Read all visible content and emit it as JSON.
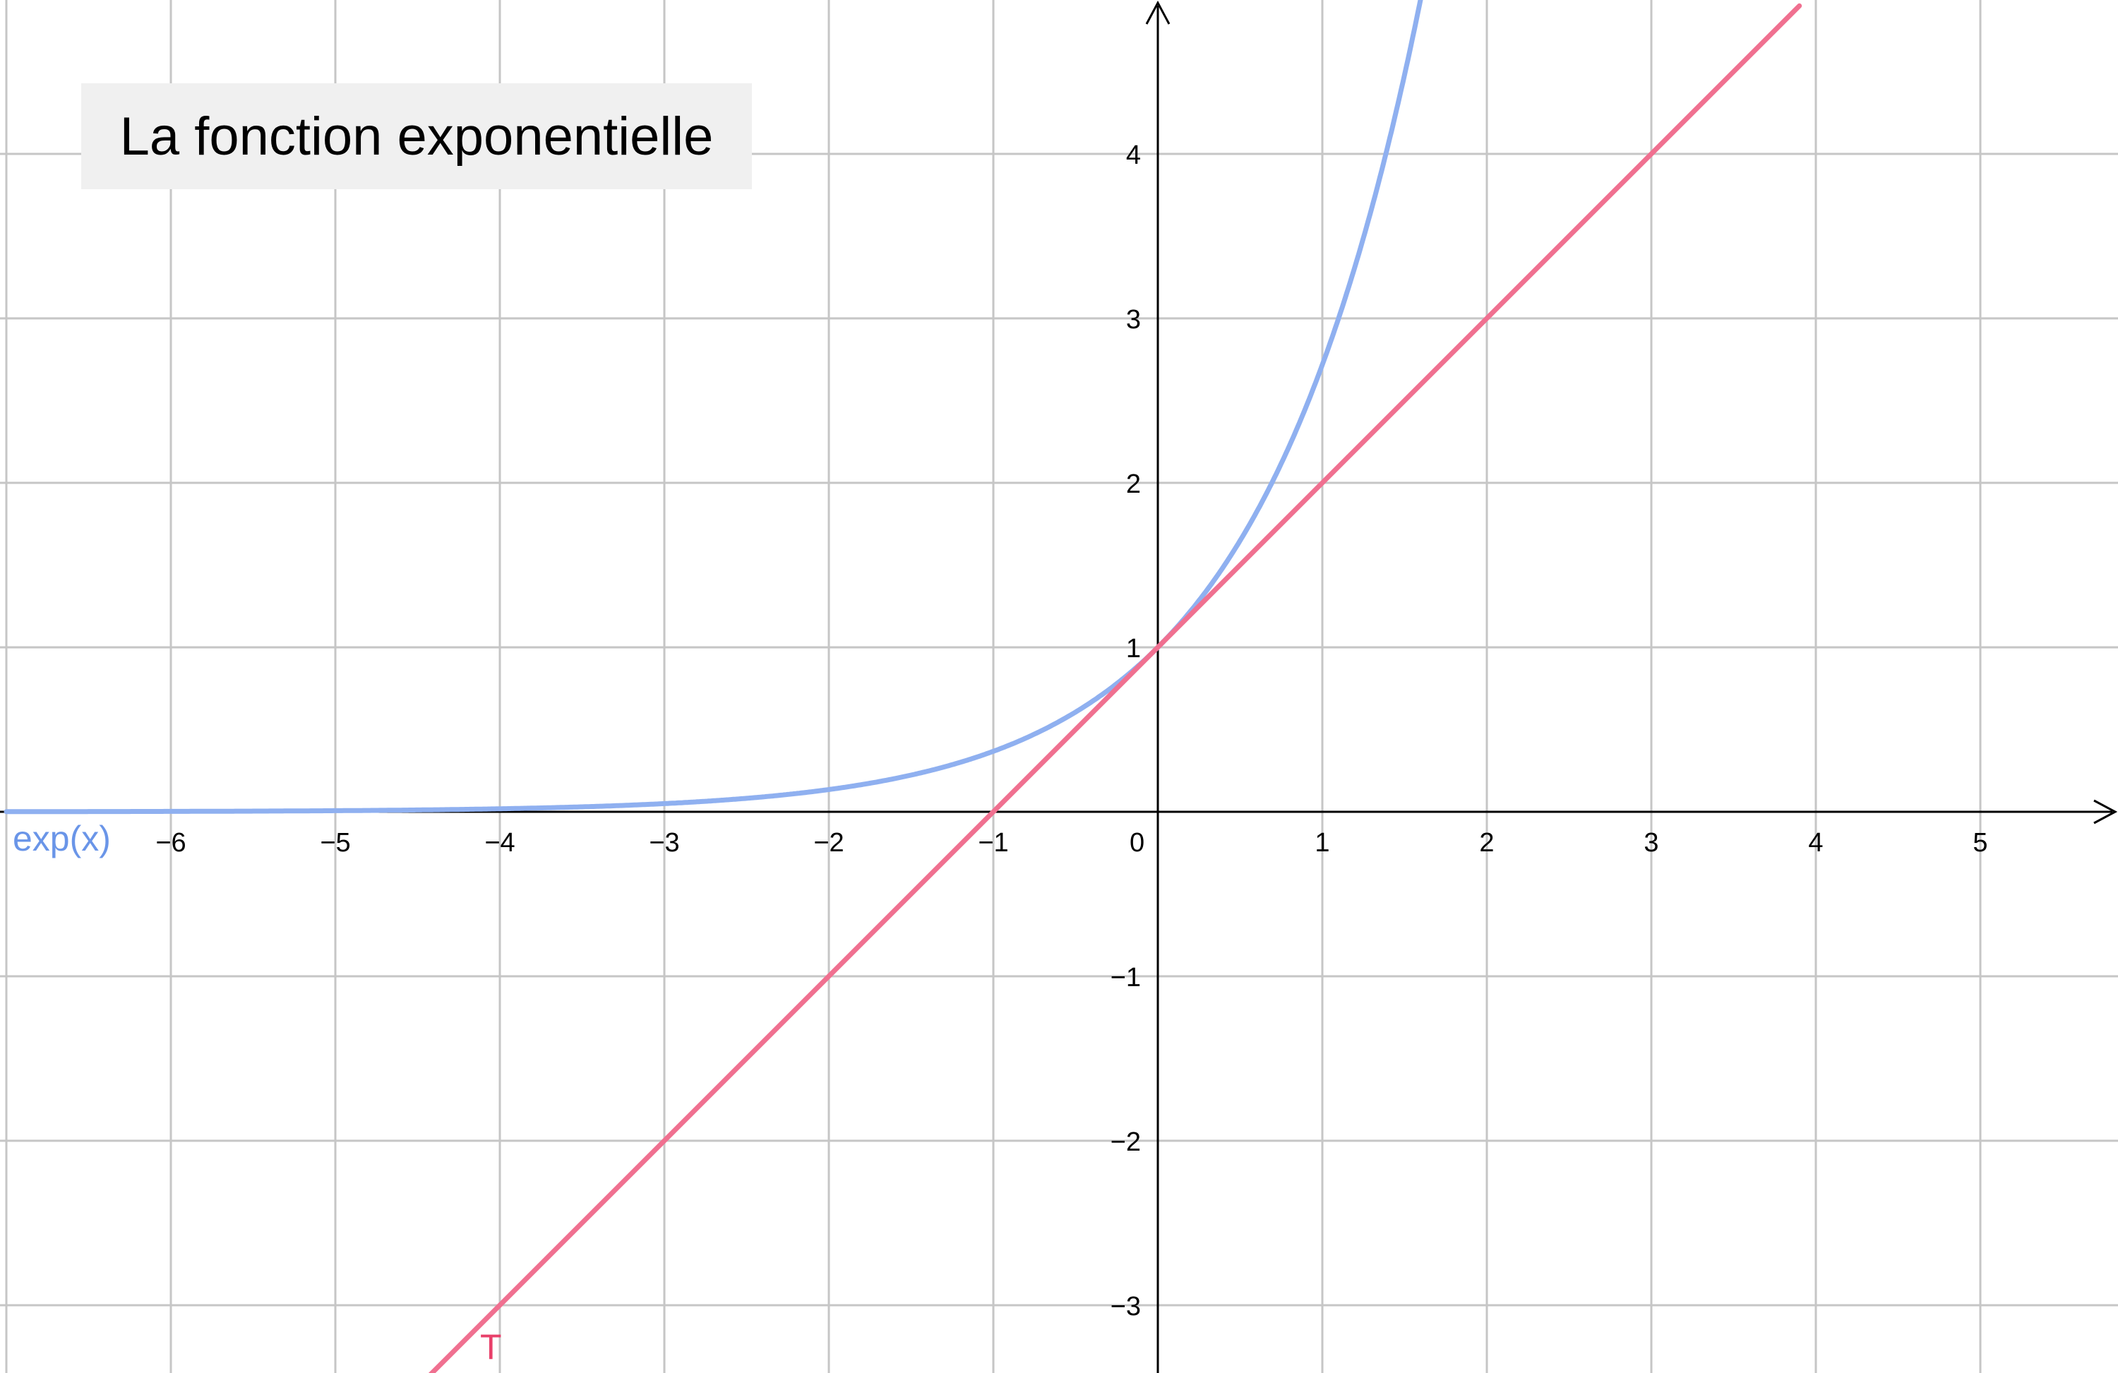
{
  "title": "La fonction exponentielle",
  "chart_data": {
    "type": "line",
    "title": "La fonction exponentielle",
    "xlabel": "",
    "ylabel": "",
    "xlim": [
      -7,
      5.8
    ],
    "ylim": [
      -3.4,
      4.9
    ],
    "grid": true,
    "x_ticks": [
      -6,
      -5,
      -4,
      -3,
      -2,
      -1,
      0,
      1,
      2,
      3,
      4,
      5
    ],
    "y_ticks": [
      -3,
      -2,
      -1,
      1,
      2,
      3,
      4
    ],
    "x_tick_labels": [
      "−6",
      "−5",
      "−4",
      "−3",
      "−2",
      "−1",
      "0",
      "1",
      "2",
      "3",
      "4",
      "5"
    ],
    "y_tick_labels": [
      "−3",
      "−2",
      "−1",
      "1",
      "2",
      "3",
      "4"
    ],
    "series": [
      {
        "name": "exp(x)",
        "function": "exp(x)",
        "color": "#8fb0f0",
        "label_color": "#6a95e8",
        "x": [
          -7,
          -6,
          -5,
          -4,
          -3,
          -2,
          -1.5,
          -1,
          -0.5,
          0,
          0.25,
          0.5,
          0.75,
          1,
          1.25,
          1.5,
          1.6
        ],
        "y": [
          0.0009,
          0.0025,
          0.0067,
          0.0183,
          0.0498,
          0.1353,
          0.2231,
          0.3679,
          0.6065,
          1,
          1.284,
          1.6487,
          2.117,
          2.7183,
          3.4903,
          4.4817,
          4.953
        ]
      },
      {
        "name": "T",
        "function": "x + 1",
        "color": "#f07090",
        "label_color": "#e8406a",
        "x": [
          -4.45,
          3.9
        ],
        "y": [
          -3.45,
          4.9
        ]
      }
    ]
  }
}
